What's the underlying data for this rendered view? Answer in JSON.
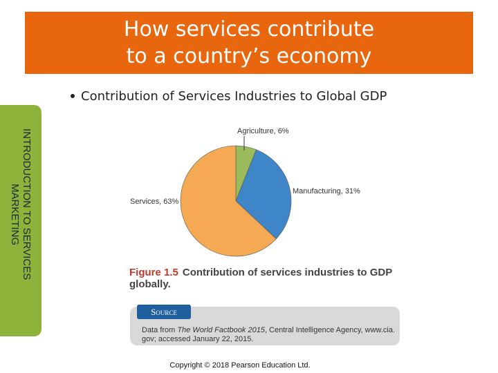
{
  "slide": {
    "title": [
      "How services contribute",
      "to a country’s economy"
    ],
    "bullet": "Contribution of Services Industries to Global GDP",
    "sidebar": [
      "INTRODUCTION TO SERVICES",
      "MARKETING"
    ],
    "caption": {
      "figure": "Figure 1.5",
      "line1": "Contribution of services industries to GDP",
      "line2": "globally."
    },
    "source": {
      "tab": "Source",
      "line1": [
        "Data from ",
        "The World Factbook 2015",
        ", Central Intelligence Agency, www.cia."
      ],
      "line2": "gov; accessed January 22, 2015."
    },
    "copyright": "Copyright © 2018 Pearson Education Ltd."
  },
  "chart_data": {
    "type": "pie",
    "values": [
      6,
      31,
      63
    ],
    "value_labels": [
      "Agriculture, 6%",
      "Manufacturing, 31%",
      "Services, 63%"
    ],
    "colors": [
      "#9cbb5a",
      "#3f86c8",
      "#f5a952"
    ]
  }
}
